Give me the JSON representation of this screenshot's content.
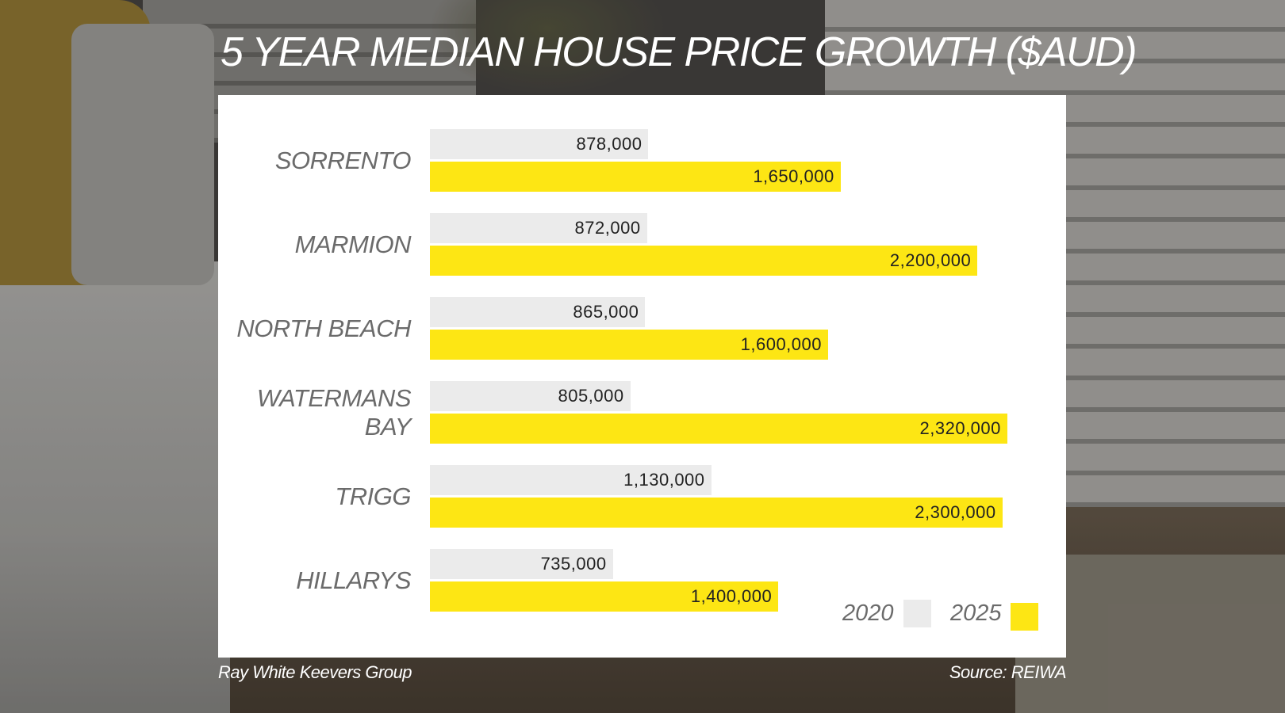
{
  "header": {
    "title": "5 YEAR MEDIAN HOUSE PRICE GROWTH ($AUD)"
  },
  "chart_data": {
    "type": "bar",
    "orientation": "horizontal",
    "categories": [
      "SORRENTO",
      "MARMION",
      "NORTH BEACH",
      "WATERMANS BAY",
      "TRIGG",
      "HILLARYS"
    ],
    "category_lines": [
      [
        "SORRENTO"
      ],
      [
        "MARMION"
      ],
      [
        "NORTH BEACH"
      ],
      [
        "WATERMANS",
        "BAY"
      ],
      [
        "TRIGG"
      ],
      [
        "HILLARYS"
      ]
    ],
    "series": [
      {
        "name": "2020",
        "color": "#ebebeb",
        "values": [
          878000,
          872000,
          865000,
          805000,
          1130000,
          735000
        ],
        "labels": [
          "878,000",
          "872,000",
          "865,000",
          "805,000",
          "1,130,000",
          "735,000"
        ]
      },
      {
        "name": "2025",
        "color": "#fde614",
        "values": [
          1650000,
          2200000,
          1600000,
          2320000,
          2300000,
          1400000
        ],
        "labels": [
          "1,650,000",
          "2,200,000",
          "1,600,000",
          "2,320,000",
          "2,300,000",
          "1,400,000"
        ]
      }
    ],
    "xlim": [
      0,
      2400000
    ],
    "grid": false,
    "legend": "bottom-right"
  },
  "footer": {
    "left": "Ray White Keevers Group",
    "right": "Source: REIWA"
  }
}
